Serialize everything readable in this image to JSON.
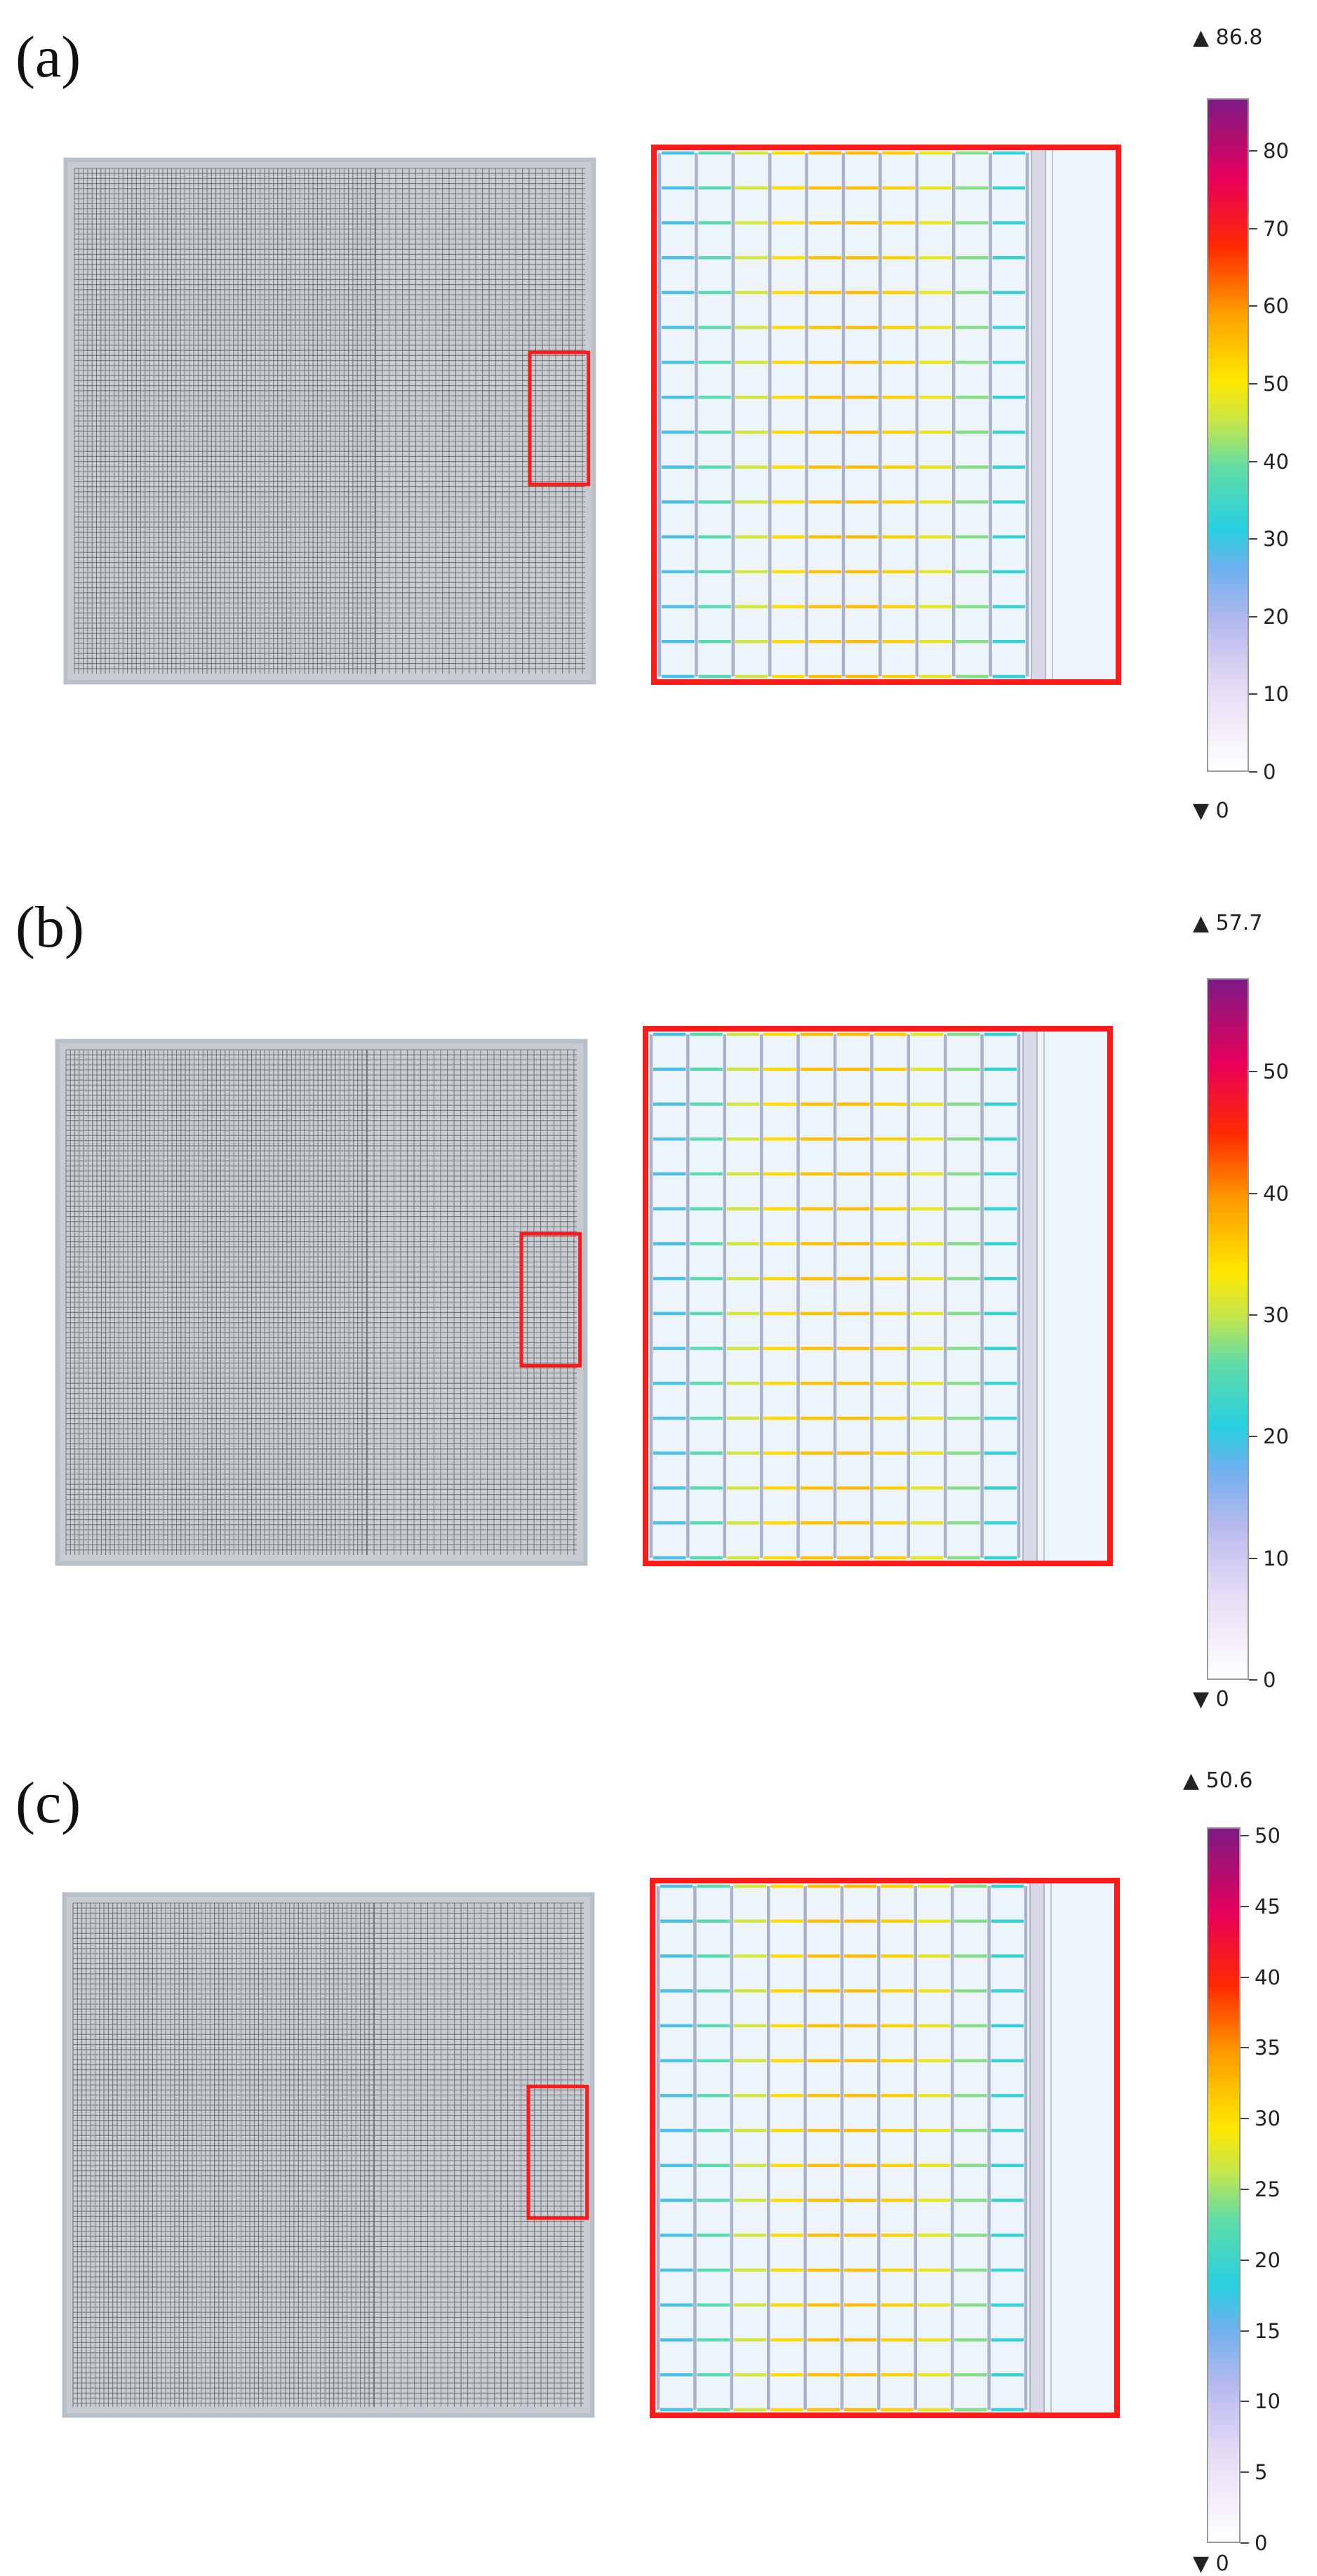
{
  "panels": [
    {
      "label": "(a)",
      "colorbar": {
        "max_label": "▲ 86.8",
        "min_label": "▼ 0",
        "max_value": 86.8,
        "ticks": [
          "0",
          "10",
          "20",
          "30",
          "40",
          "50",
          "60",
          "70",
          "80"
        ],
        "tick_values": [
          0,
          10,
          20,
          30,
          40,
          50,
          60,
          70,
          80
        ]
      }
    },
    {
      "label": "(b)",
      "colorbar": {
        "max_label": "▲ 57.7",
        "min_label": "▼ 0",
        "max_value": 57.7,
        "ticks": [
          "0",
          "10",
          "20",
          "30",
          "40",
          "50"
        ],
        "tick_values": [
          0,
          10,
          20,
          30,
          40,
          50
        ]
      }
    },
    {
      "label": "(c)",
      "colorbar": {
        "max_label": "▲ 50.6",
        "min_label": "▼ 0",
        "max_value": 50.6,
        "ticks": [
          "0",
          "5",
          "10",
          "15",
          "20",
          "25",
          "30",
          "35",
          "40",
          "45",
          "50"
        ],
        "tick_values": [
          0,
          5,
          10,
          15,
          20,
          25,
          30,
          35,
          40,
          45,
          50
        ]
      }
    }
  ],
  "colors": {
    "highlight": "#ff1a1a",
    "mesh": "#6b6b6b",
    "frame": "#b9bfc8"
  }
}
